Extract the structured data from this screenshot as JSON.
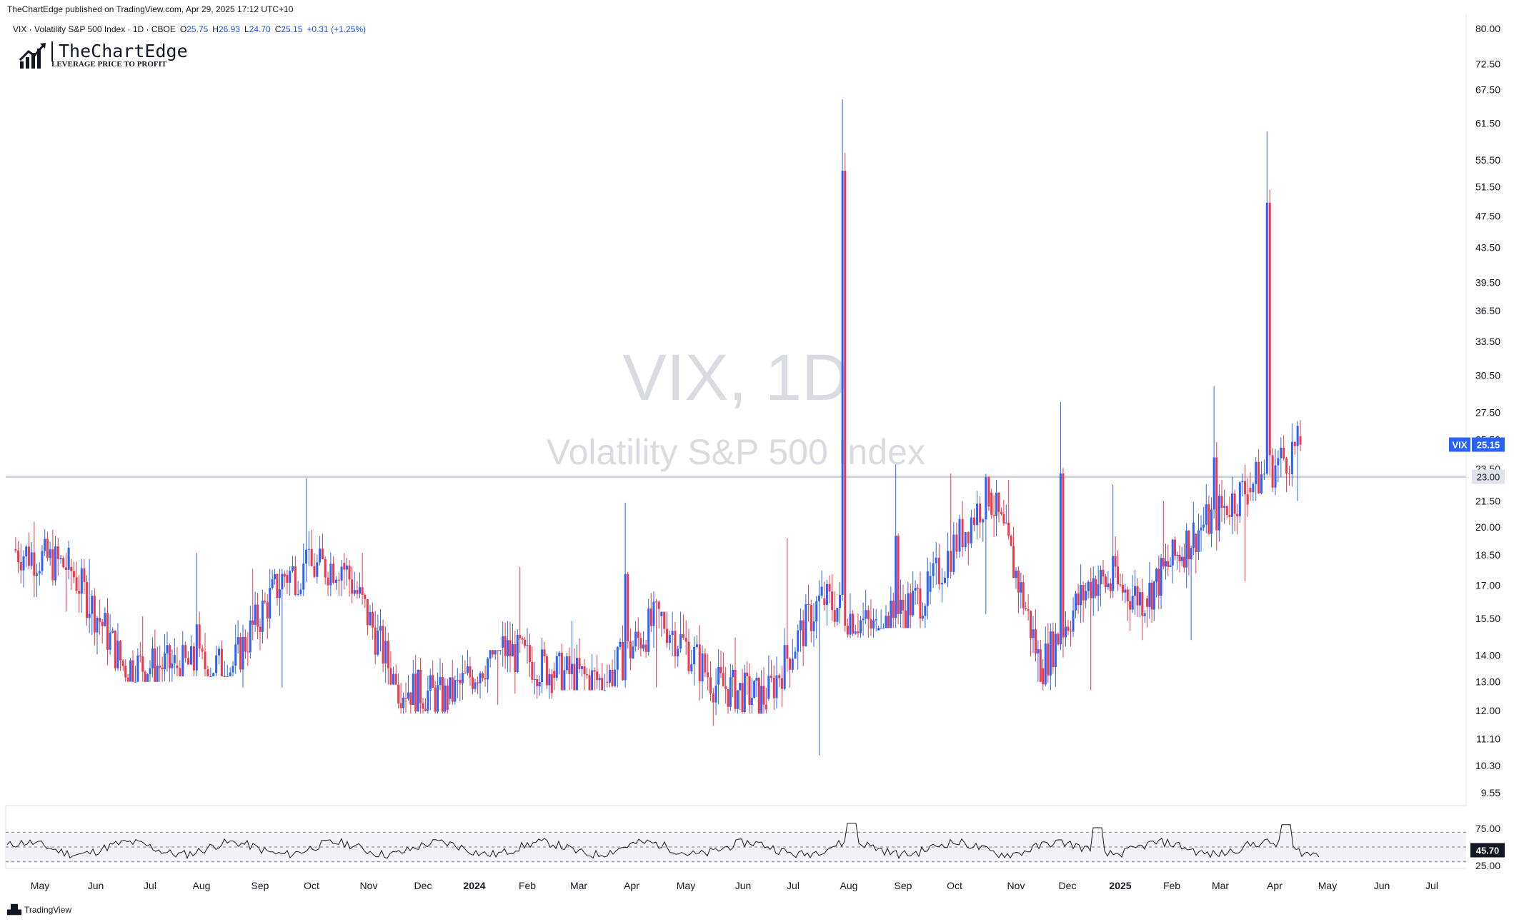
{
  "header": {
    "published": "TheChartEdge published on TradingView.com, Apr 29, 2025 17:12 UTC+10",
    "symbol_desc": "VIX · Volatility S&P 500 Index · 1D · CBOE",
    "o_label": "O",
    "o_value": "25.75",
    "h_label": "H",
    "h_value": "26.93",
    "l_label": "L",
    "l_value": "24.70",
    "c_label": "C",
    "c_value": "25.15",
    "change": "+0.31 (+1.25%)"
  },
  "logo": {
    "name": "TheChartEdge",
    "tagline": "LEVERAGE PRICE TO PROFIT"
  },
  "watermark": {
    "line1": "VIX, 1D",
    "line2": "Volatility S&P 500 Index"
  },
  "footer": {
    "brand": "TradingView",
    "icon": "tradingview-logo-icon"
  },
  "colors": {
    "up": "#2962ff",
    "down": "#f23645",
    "hline": "#d1d4dc",
    "accent": "#2962ff",
    "rsi_line": "#131722"
  },
  "chart_data": {
    "type": "candlestick",
    "title": "VIX, 1D",
    "subtitle": "Volatility S&P 500 Index",
    "y_scale": "log",
    "y_ticks": [
      "80.00",
      "72.50",
      "67.50",
      "61.50",
      "55.50",
      "51.50",
      "47.50",
      "43.50",
      "39.50",
      "36.50",
      "33.50",
      "30.50",
      "27.50",
      "25.50",
      "23.50",
      "21.50",
      "20.00",
      "18.50",
      "17.00",
      "15.50",
      "14.00",
      "13.00",
      "12.00",
      "11.10",
      "10.30",
      "9.55"
    ],
    "x_ticks": [
      "May",
      "Jun",
      "Jul",
      "Aug",
      "Sep",
      "Oct",
      "Nov",
      "Dec",
      "2024",
      "Feb",
      "Mar",
      "Apr",
      "May",
      "Jun",
      "Jul",
      "Aug",
      "Sep",
      "Oct",
      "Nov",
      "Dec",
      "2025",
      "Feb",
      "Mar",
      "Apr",
      "May",
      "Jun",
      "Jul"
    ],
    "horizontal_line": {
      "value": 23.0,
      "label": "23.00"
    },
    "last_price": {
      "symbol": "VIX",
      "value": "25.15"
    },
    "monthly_ohlc_approx": [
      {
        "month": "2023-05",
        "open": 18.8,
        "high": 20.3,
        "low": 15.8,
        "close": 17.9
      },
      {
        "month": "2023-06",
        "open": 17.9,
        "high": 18.3,
        "low": 13.4,
        "close": 13.6
      },
      {
        "month": "2023-07",
        "open": 13.6,
        "high": 15.6,
        "low": 13.0,
        "close": 13.6
      },
      {
        "month": "2023-08",
        "open": 13.6,
        "high": 18.6,
        "low": 13.2,
        "close": 13.6
      },
      {
        "month": "2023-09",
        "open": 13.6,
        "high": 17.8,
        "low": 12.8,
        "close": 17.5
      },
      {
        "month": "2023-10",
        "open": 17.5,
        "high": 22.9,
        "low": 16.5,
        "close": 18.1
      },
      {
        "month": "2023-11",
        "open": 18.1,
        "high": 18.6,
        "low": 12.9,
        "close": 12.9
      },
      {
        "month": "2023-12",
        "open": 12.9,
        "high": 14.0,
        "low": 11.9,
        "close": 12.4
      },
      {
        "month": "2024-01",
        "open": 12.4,
        "high": 14.2,
        "low": 12.2,
        "close": 14.3
      },
      {
        "month": "2024-02",
        "open": 14.3,
        "high": 17.9,
        "low": 12.4,
        "close": 13.4
      },
      {
        "month": "2024-03",
        "open": 13.4,
        "high": 15.4,
        "low": 12.7,
        "close": 13.0
      },
      {
        "month": "2024-04",
        "open": 13.0,
        "high": 21.4,
        "low": 12.8,
        "close": 15.6
      },
      {
        "month": "2024-05",
        "open": 15.6,
        "high": 15.8,
        "low": 11.5,
        "close": 12.9
      },
      {
        "month": "2024-06",
        "open": 12.9,
        "high": 14.7,
        "low": 11.9,
        "close": 12.4
      },
      {
        "month": "2024-07",
        "open": 12.4,
        "high": 19.4,
        "low": 10.6,
        "close": 16.4
      },
      {
        "month": "2024-08",
        "open": 16.4,
        "high": 65.7,
        "low": 14.7,
        "close": 15.0
      },
      {
        "month": "2024-09",
        "open": 15.0,
        "high": 23.8,
        "low": 15.1,
        "close": 16.7
      },
      {
        "month": "2024-10",
        "open": 16.7,
        "high": 23.2,
        "low": 15.7,
        "close": 22.0
      },
      {
        "month": "2024-11",
        "open": 22.0,
        "high": 22.8,
        "low": 13.0,
        "close": 13.5
      },
      {
        "month": "2024-12",
        "open": 13.5,
        "high": 28.3,
        "low": 12.7,
        "close": 17.3
      },
      {
        "month": "2025-01",
        "open": 17.3,
        "high": 22.5,
        "low": 14.6,
        "close": 16.4
      },
      {
        "month": "2025-02",
        "open": 16.4,
        "high": 21.5,
        "low": 14.6,
        "close": 19.6
      },
      {
        "month": "2025-03",
        "open": 19.6,
        "high": 29.6,
        "low": 17.2,
        "close": 22.3
      },
      {
        "month": "2025-04",
        "open": 22.3,
        "high": 60.1,
        "low": 21.5,
        "close": 25.15
      }
    ],
    "rsi": {
      "last_value": "45.70",
      "levels": [
        "75.00",
        "25.00"
      ],
      "guide_levels": [
        70,
        50,
        30
      ]
    }
  }
}
